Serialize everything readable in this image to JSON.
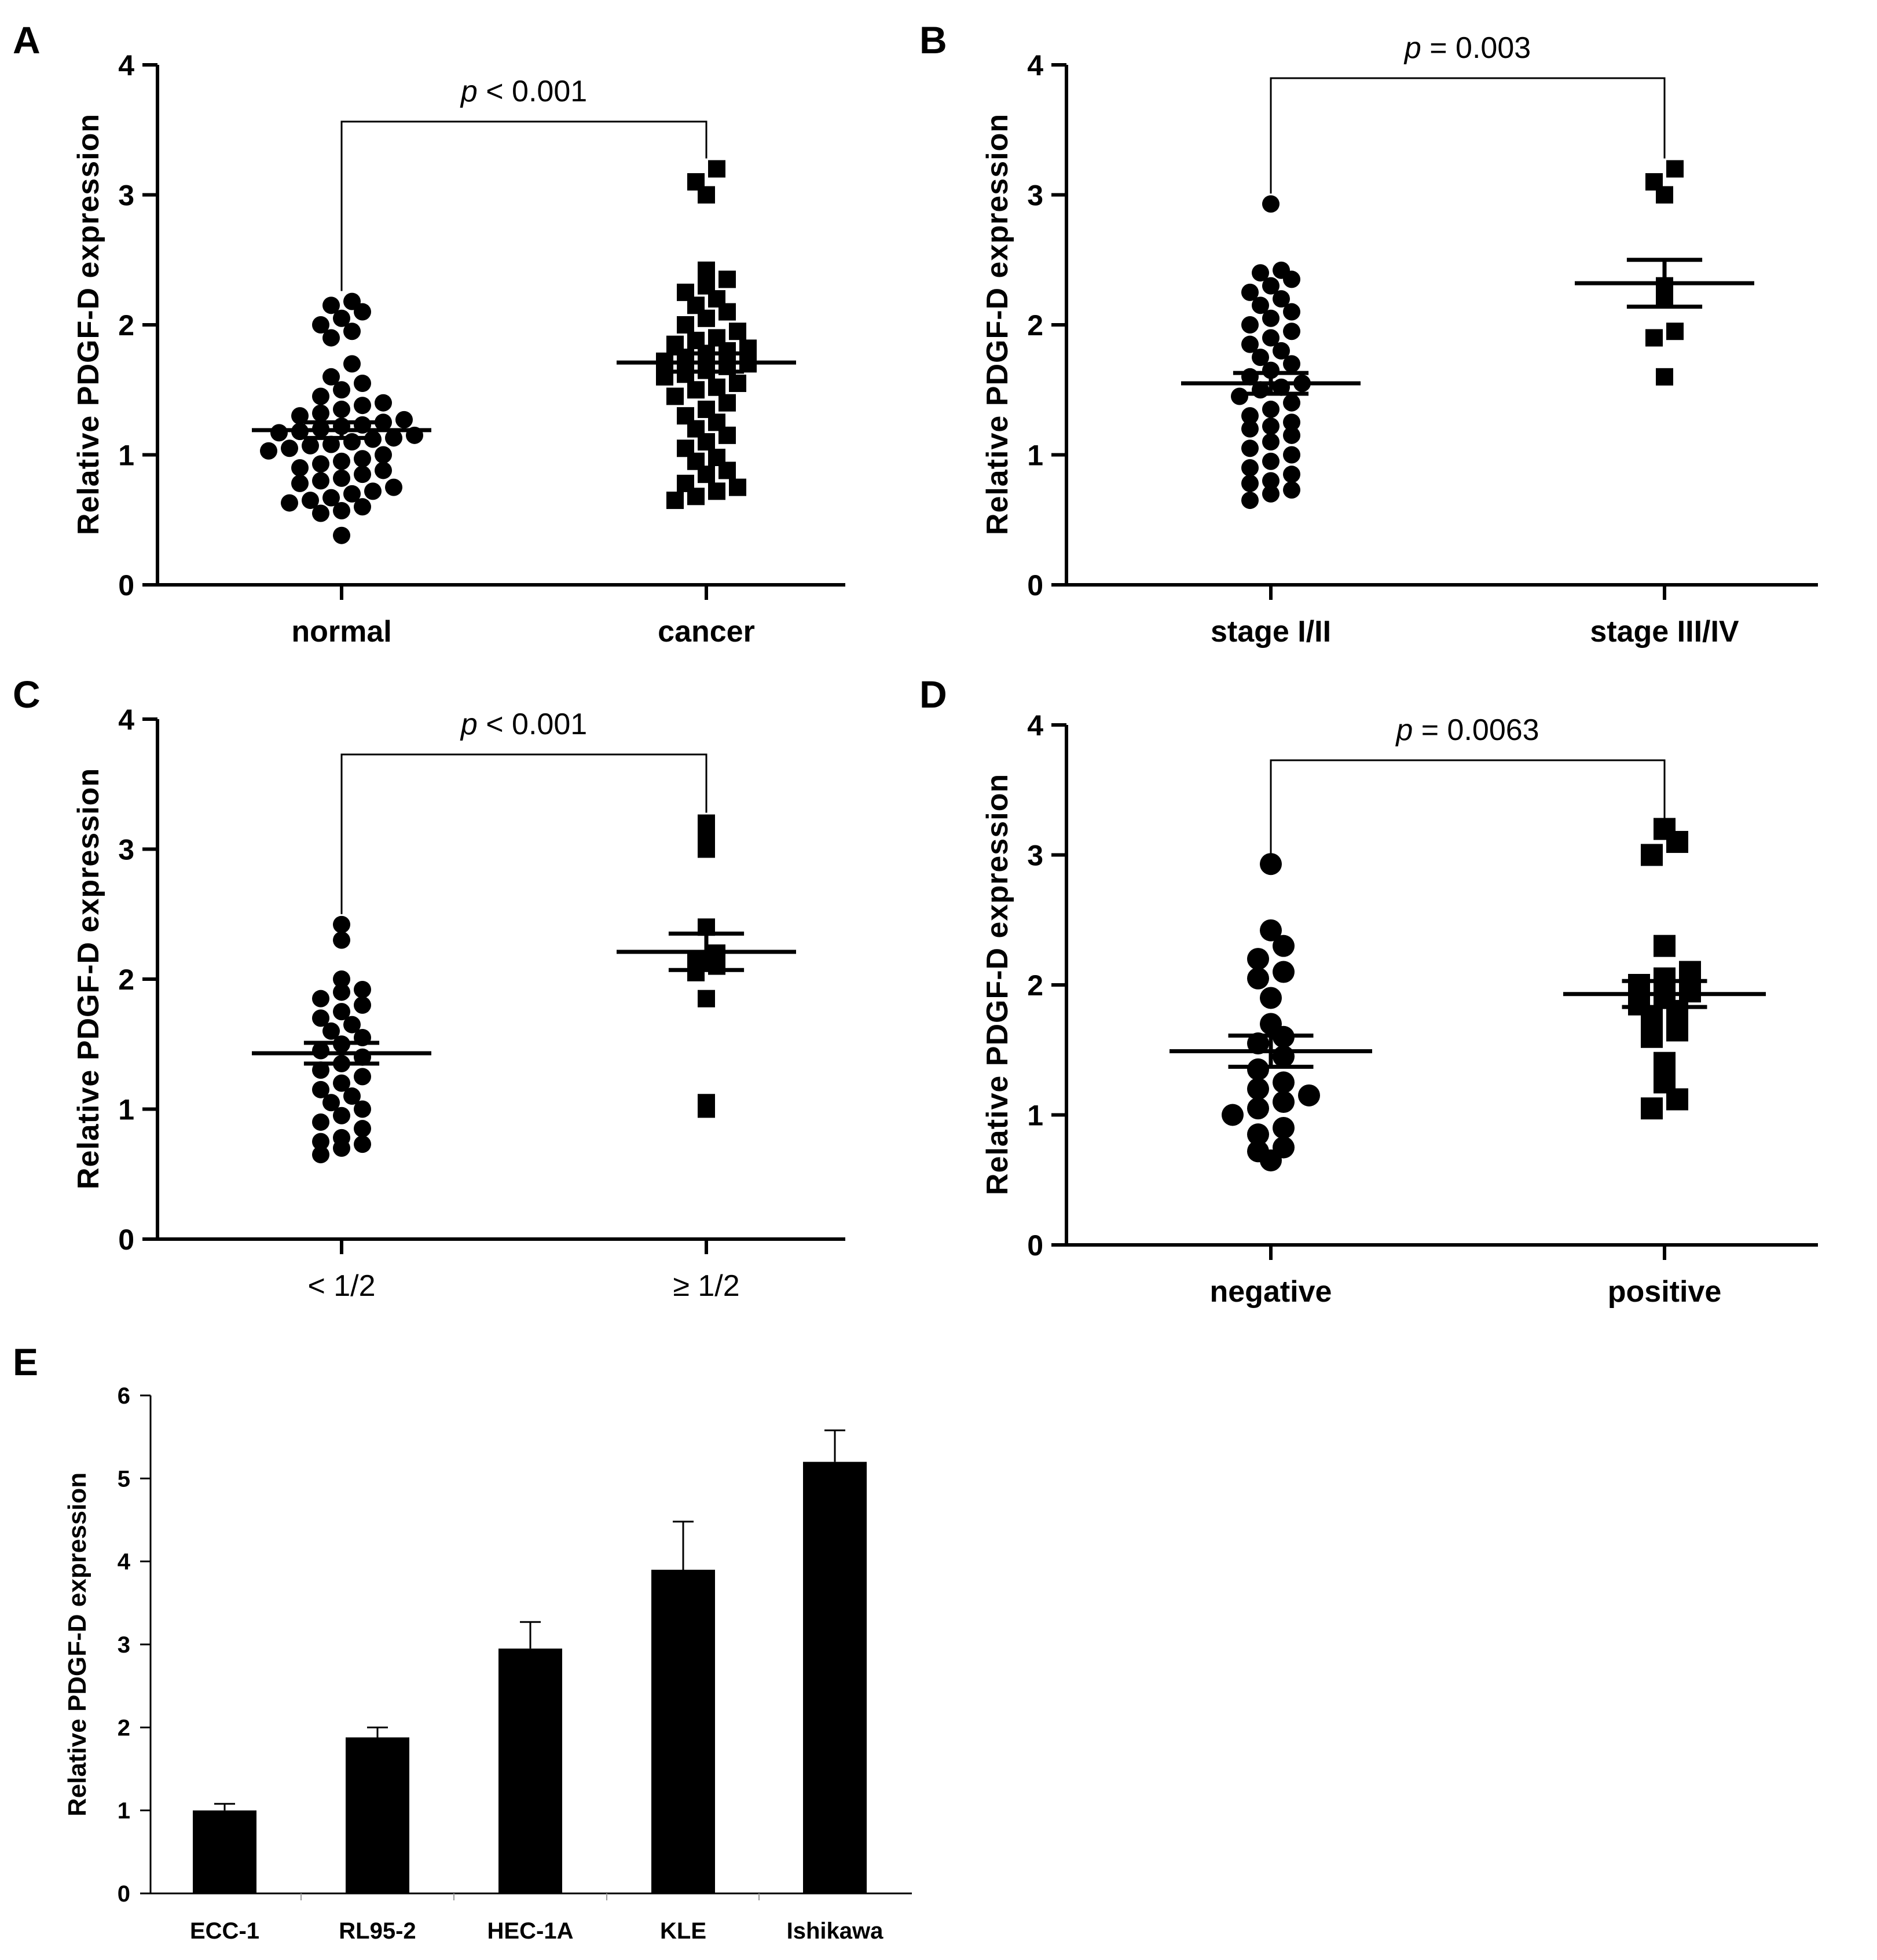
{
  "chart_data": [
    {
      "panel": "A",
      "type": "scatter",
      "ylabel": "Relative PDGF-D expression",
      "ylim": [
        0,
        4
      ],
      "yticks": [
        "0",
        "1",
        "2",
        "3",
        "4"
      ],
      "categories": [
        "normal",
        "cancer"
      ],
      "p_italic": "p",
      "p_text": " < 0.001",
      "series": [
        {
          "name": "normal",
          "marker": "circle",
          "mean": 1.19,
          "sem": 0.06,
          "values": [
            0.38,
            0.55,
            0.57,
            0.6,
            0.63,
            0.65,
            0.67,
            0.7,
            0.72,
            0.75,
            0.78,
            0.8,
            0.82,
            0.85,
            0.88,
            0.9,
            0.93,
            0.95,
            0.97,
            1.0,
            1.03,
            1.05,
            1.07,
            1.08,
            1.1,
            1.12,
            1.13,
            1.15,
            1.17,
            1.18,
            1.2,
            1.22,
            1.23,
            1.25,
            1.27,
            1.3,
            1.32,
            1.35,
            1.38,
            1.4,
            1.45,
            1.5,
            1.55,
            1.6,
            1.7,
            1.9,
            1.95,
            2.0,
            2.05,
            2.1,
            2.15,
            2.18
          ]
        },
        {
          "name": "cancer",
          "marker": "square",
          "mean": 1.71,
          "sem": 0.07,
          "values": [
            0.65,
            0.68,
            0.72,
            0.75,
            0.78,
            0.85,
            0.88,
            0.95,
            0.98,
            1.05,
            1.1,
            1.15,
            1.2,
            1.25,
            1.3,
            1.35,
            1.4,
            1.45,
            1.5,
            1.52,
            1.55,
            1.6,
            1.62,
            1.65,
            1.68,
            1.7,
            1.72,
            1.75,
            1.78,
            1.8,
            1.82,
            1.85,
            1.88,
            1.9,
            1.95,
            2.0,
            2.05,
            2.1,
            2.15,
            2.2,
            2.25,
            2.3,
            2.35,
            2.42,
            3.0,
            3.1,
            3.2
          ]
        }
      ]
    },
    {
      "panel": "B",
      "type": "scatter",
      "ylabel": "Relative PDGF-D expression",
      "ylim": [
        0,
        4
      ],
      "yticks": [
        "0",
        "1",
        "2",
        "3",
        "4"
      ],
      "categories": [
        "stage I/II",
        "stage III/IV"
      ],
      "p_italic": "p",
      "p_text": " = 0.003",
      "series": [
        {
          "name": "stage I/II",
          "marker": "circle",
          "mean": 1.55,
          "sem": 0.08,
          "values": [
            0.65,
            0.7,
            0.73,
            0.78,
            0.8,
            0.85,
            0.9,
            0.95,
            1.0,
            1.05,
            1.1,
            1.15,
            1.2,
            1.22,
            1.25,
            1.3,
            1.35,
            1.4,
            1.45,
            1.5,
            1.52,
            1.55,
            1.6,
            1.65,
            1.7,
            1.75,
            1.8,
            1.85,
            1.9,
            1.95,
            2.0,
            2.05,
            2.1,
            2.15,
            2.2,
            2.25,
            2.3,
            2.35,
            2.4,
            2.42,
            2.93
          ]
        },
        {
          "name": "stage III/IV",
          "marker": "square",
          "mean": 2.32,
          "sem": 0.18,
          "values": [
            1.6,
            1.9,
            1.95,
            2.2,
            2.3,
            3.0,
            3.1,
            3.2
          ]
        }
      ]
    },
    {
      "panel": "C",
      "type": "scatter",
      "ylabel": "Relative PDGF-D expression",
      "ylim": [
        0,
        4
      ],
      "yticks": [
        "0",
        "1",
        "2",
        "3",
        "4"
      ],
      "categories": [
        "< 1/2",
        "≥ 1/2"
      ],
      "p_italic": "p",
      "p_text": " < 0.001",
      "series": [
        {
          "name": "< 1/2",
          "marker": "circle",
          "mean": 1.43,
          "sem": 0.08,
          "values": [
            0.65,
            0.7,
            0.73,
            0.75,
            0.78,
            0.85,
            0.9,
            0.95,
            1.0,
            1.05,
            1.1,
            1.15,
            1.2,
            1.25,
            1.3,
            1.35,
            1.4,
            1.45,
            1.5,
            1.55,
            1.6,
            1.65,
            1.7,
            1.75,
            1.8,
            1.85,
            1.9,
            1.92,
            2.0,
            2.3,
            2.42
          ]
        },
        {
          "name": "≥ 1/2",
          "marker": "square",
          "mean": 2.21,
          "sem": 0.14,
          "values": [
            1.0,
            1.05,
            1.85,
            2.05,
            2.1,
            2.15,
            2.2,
            2.4,
            3.0,
            3.1,
            3.2
          ]
        }
      ]
    },
    {
      "panel": "D",
      "type": "scatter",
      "ylabel": "Relative PDGF-D expression",
      "ylim": [
        0,
        4
      ],
      "yticks": [
        "0",
        "1",
        "2",
        "3",
        "4"
      ],
      "categories": [
        "negative",
        "positive"
      ],
      "p_italic": "p",
      "p_text": " = 0.0063",
      "series": [
        {
          "name": "negative",
          "marker": "circle",
          "mean": 1.49,
          "sem": 0.12,
          "values": [
            0.65,
            0.72,
            0.75,
            0.85,
            0.9,
            1.0,
            1.05,
            1.1,
            1.15,
            1.2,
            1.25,
            1.35,
            1.45,
            1.55,
            1.6,
            1.7,
            1.9,
            2.05,
            2.1,
            2.2,
            2.3,
            2.42,
            2.93
          ]
        },
        {
          "name": "positive",
          "marker": "square",
          "mean": 1.93,
          "sem": 0.1,
          "values": [
            1.05,
            1.12,
            1.25,
            1.4,
            1.6,
            1.65,
            1.75,
            1.8,
            1.85,
            1.9,
            1.95,
            2.0,
            2.05,
            2.1,
            2.3,
            3.0,
            3.1,
            3.2
          ]
        }
      ]
    },
    {
      "panel": "E",
      "type": "bar",
      "ylabel": "Relative PDGF-D expression",
      "ylim": [
        0,
        6
      ],
      "yticks": [
        "0",
        "1",
        "2",
        "3",
        "4",
        "5",
        "6"
      ],
      "categories": [
        "ECC-1",
        "RL95-2",
        "HEC-1A",
        "KLE",
        "Ishikawa"
      ],
      "values": [
        1.0,
        1.88,
        2.95,
        3.9,
        5.2
      ],
      "errors": [
        0.08,
        0.12,
        0.32,
        0.58,
        0.38
      ]
    }
  ]
}
